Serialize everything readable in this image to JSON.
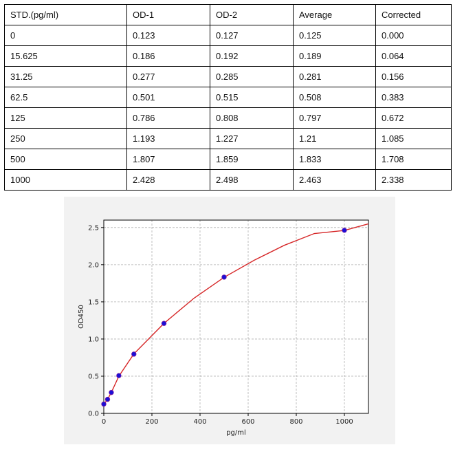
{
  "table": {
    "headers": [
      "STD.(pg/ml)",
      "OD-1",
      "OD-2",
      "Average",
      "Corrected"
    ],
    "rows": [
      [
        "0",
        "0.123",
        "0.127",
        "0.125",
        "0.000"
      ],
      [
        "15.625",
        "0.186",
        "0.192",
        "0.189",
        "0.064"
      ],
      [
        "31.25",
        "0.277",
        "0.285",
        "0.281",
        "0.156"
      ],
      [
        "62.5",
        "0.501",
        "0.515",
        "0.508",
        "0.383"
      ],
      [
        "125",
        "0.786",
        "0.808",
        "0.797",
        "0.672"
      ],
      [
        "250",
        "1.193",
        "1.227",
        "1.21",
        "1.085"
      ],
      [
        "500",
        "1.807",
        "1.859",
        "1.833",
        "1.708"
      ],
      [
        "1000",
        "2.428",
        "2.498",
        "2.463",
        "2.338"
      ]
    ]
  },
  "chart_data": {
    "type": "scatter",
    "title": "",
    "xlabel": "pg/ml",
    "ylabel": "OD450",
    "xlim": [
      0,
      1100
    ],
    "ylim": [
      0,
      2.6
    ],
    "xticks": [
      0,
      200,
      400,
      600,
      800,
      1000
    ],
    "yticks": [
      0.0,
      0.5,
      1.0,
      1.5,
      2.0,
      2.5
    ],
    "xtick_labels": [
      "0",
      "200",
      "400",
      "600",
      "800",
      "1000"
    ],
    "ytick_labels": [
      "0.0",
      "0.5",
      "1.0",
      "1.5",
      "2.0",
      "2.5"
    ],
    "grid": true,
    "points": {
      "x": [
        0,
        15.625,
        31.25,
        62.5,
        125,
        250,
        500,
        1000
      ],
      "y": [
        0.125,
        0.189,
        0.281,
        0.508,
        0.797,
        1.21,
        1.833,
        2.463
      ]
    },
    "fit_curve": {
      "x": [
        0,
        15.625,
        31.25,
        62.5,
        125,
        250,
        375,
        500,
        625,
        750,
        875,
        1000,
        1100
      ],
      "y": [
        0.12,
        0.19,
        0.28,
        0.5,
        0.8,
        1.21,
        1.55,
        1.83,
        2.06,
        2.26,
        2.42,
        2.46,
        2.55
      ]
    },
    "colors": {
      "points": "#1a0fd6",
      "point_edge": "#7a1fa8",
      "curve": "#d62728",
      "panel_bg": "#f2f2f2",
      "plot_bg": "#ffffff",
      "grid": "#b0b0b0"
    }
  }
}
